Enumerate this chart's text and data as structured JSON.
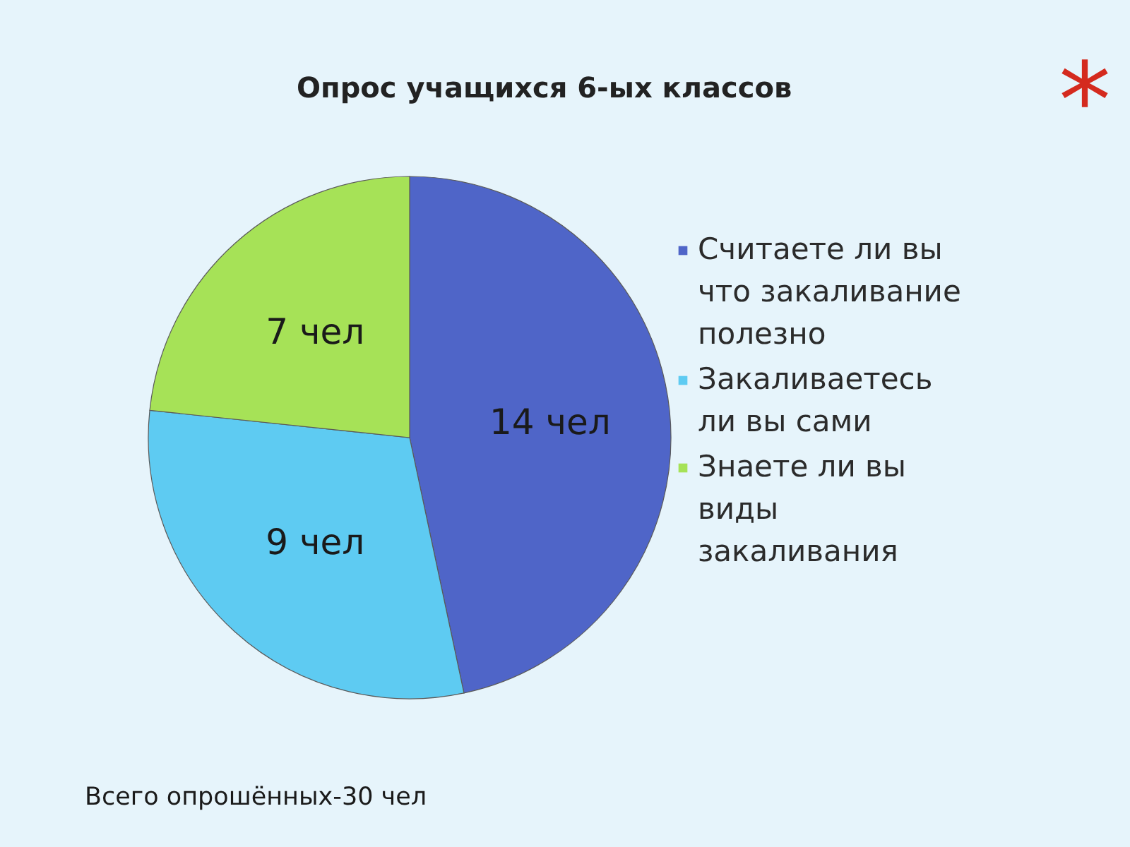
{
  "chart_data": {
    "type": "pie",
    "title": "Опрос учащихся 6-ых классов",
    "categories": [
      "Считаете ли вы что закаливание полезно",
      "Закаливаетесь ли вы сами",
      "Знаете ли вы виды закаливания"
    ],
    "values": [
      14,
      9,
      7
    ],
    "colors": [
      "#4f65c8",
      "#5ecbf2",
      "#a6e257"
    ],
    "value_labels": [
      "14 чел",
      "9 чел",
      "7 чел"
    ],
    "legend": "right",
    "annotations": [
      "Всего опрошённых-30 чел",
      "*"
    ]
  }
}
